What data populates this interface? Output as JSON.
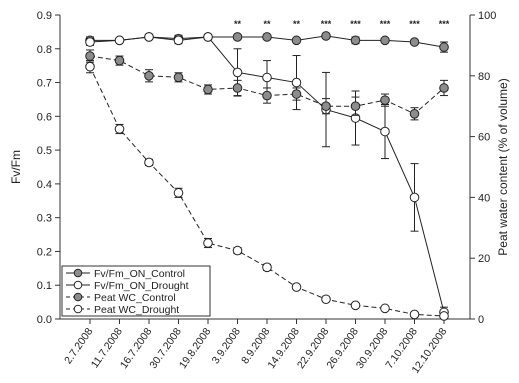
{
  "chart_data": {
    "type": "line",
    "x_categories": [
      "2.7.2008",
      "11.7.2008",
      "16.7.2008",
      "30.7.2008",
      "19.8.2008",
      "3.9.2008",
      "8.9.2008",
      "14.9.2008",
      "22.9.2008",
      "26.9.2008",
      "30.9.2008",
      "7.10.2008",
      "12.10.2008"
    ],
    "ylabel_left": "Fv/Fm",
    "ylabel_right": "Peat water content (% of volume)",
    "ylim_left": [
      0.0,
      0.9
    ],
    "ylim_right": [
      0,
      100
    ],
    "yticks_left": [
      "0.0",
      "0.1",
      "0.2",
      "0.3",
      "0.4",
      "0.5",
      "0.6",
      "0.7",
      "0.8",
      "0.9"
    ],
    "yticks_right": [
      "0",
      "20",
      "40",
      "60",
      "80",
      "100"
    ],
    "significance": [
      "",
      "",
      "",
      "",
      "",
      "**",
      "**",
      "**",
      "***",
      "***",
      "***",
      "***",
      "***"
    ],
    "series": [
      {
        "name": "Fv/Fm_ON_Control",
        "axis": "left",
        "marker_fill": "#8c8c8c",
        "line_style": "solid",
        "values": [
          0.825,
          0.825,
          0.835,
          0.83,
          0.835,
          0.835,
          0.835,
          0.825,
          0.838,
          0.825,
          0.825,
          0.82,
          0.805
        ],
        "errors": [
          0.01,
          0.005,
          0.005,
          0.01,
          0.005,
          0.005,
          0.005,
          0.005,
          0.005,
          0.01,
          0.005,
          0.005,
          0.015
        ]
      },
      {
        "name": "Fv/Fm_ON_Drought",
        "axis": "left",
        "marker_fill": "#ffffff",
        "line_style": "solid",
        "values": [
          0.82,
          0.825,
          0.835,
          0.825,
          0.835,
          0.73,
          0.715,
          0.7,
          0.62,
          0.595,
          0.555,
          0.36,
          0.02
        ],
        "errors": [
          0.01,
          0.005,
          0.005,
          0.01,
          0.005,
          0.07,
          0.05,
          0.08,
          0.11,
          0.08,
          0.08,
          0.1,
          0.015
        ]
      },
      {
        "name": "Peat WC_Control",
        "axis": "right",
        "marker_fill": "#8c8c8c",
        "line_style": "dashed",
        "values": [
          86.5,
          85.0,
          80.0,
          79.5,
          75.5,
          76.0,
          73.5,
          74.0,
          70.0,
          70.0,
          72.0,
          67.5,
          76.0
        ],
        "errors": [
          2.0,
          1.5,
          2.0,
          1.5,
          1.5,
          2.5,
          2.5,
          2.0,
          2.5,
          3.0,
          2.0,
          2.0,
          2.5
        ]
      },
      {
        "name": "Peat WC_Drought",
        "axis": "right",
        "marker_fill": "#ffffff",
        "line_style": "dashed",
        "values": [
          83.0,
          62.5,
          51.5,
          41.5,
          25.0,
          22.5,
          17.0,
          10.5,
          6.5,
          4.5,
          3.5,
          1.5,
          1.0
        ],
        "errors": [
          2.0,
          1.5,
          1.0,
          1.5,
          1.5,
          1.0,
          1.0,
          0.5,
          0.5,
          0.5,
          0.5,
          0.3,
          0.3
        ]
      }
    ],
    "legend_position": "bottom-left"
  }
}
